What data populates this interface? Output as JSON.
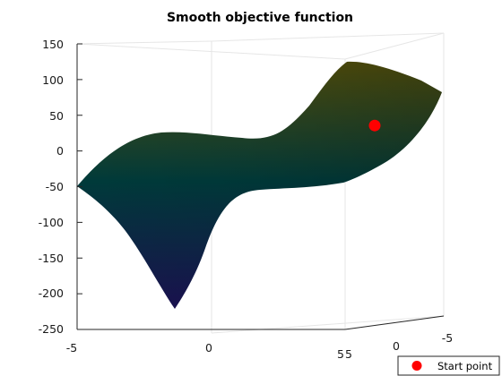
{
  "chart_data": {
    "type": "surface",
    "title": "Smooth objective function",
    "xlabel": "",
    "ylabel": "",
    "zlabel": "",
    "xlim": [
      -5,
      5
    ],
    "ylim": [
      -5,
      5
    ],
    "zlim": [
      -250,
      150
    ],
    "x_ticks": [
      "-5",
      "0",
      "5"
    ],
    "y_ticks": [
      "5",
      "0",
      "-5"
    ],
    "z_ticks": [
      "150",
      "100",
      "50",
      "0",
      "-50",
      "-100",
      "-150",
      "-200",
      "-250"
    ],
    "grid": true,
    "colors": {
      "low": "#1a1150",
      "mid": "#003a3a",
      "high": "#575009",
      "marker": "#ff0000",
      "box": "#e6e6e6",
      "axis": "#262626"
    },
    "surface_profile": {
      "x": [
        -5,
        -3.4,
        -1.3,
        0,
        1.5,
        3,
        5
      ],
      "z_at_y_pos5": [
        -50,
        -122,
        -222,
        -140,
        -75,
        -62,
        -50
      ],
      "z_at_y_neg5": [
        -50,
        20,
        25,
        18,
        43,
        100,
        85
      ]
    },
    "series": [
      {
        "name": "Start point",
        "marker": "circle",
        "points": [
          {
            "x": 5,
            "y": 2,
            "z": 30
          }
        ]
      }
    ],
    "legend": {
      "entries": [
        "Start point"
      ],
      "placement": "bottom-right"
    }
  }
}
